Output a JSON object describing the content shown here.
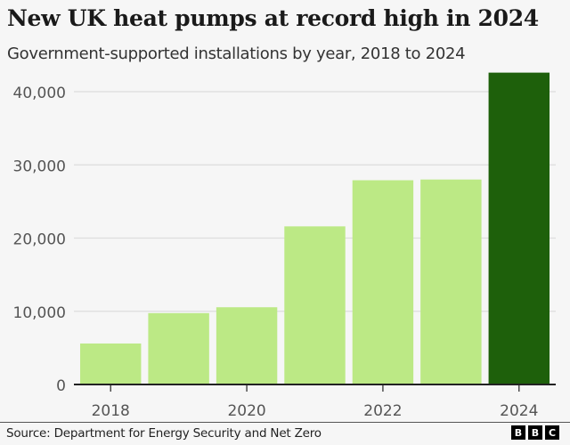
{
  "chart_data": {
    "type": "bar",
    "title": "New UK heat pumps at record high in 2024",
    "subtitle": "Government-supported installations by year, 2018 to 2024",
    "categories": [
      "2018",
      "2019",
      "2020",
      "2021",
      "2022",
      "2023",
      "2024"
    ],
    "values": [
      5600,
      9750,
      10550,
      21600,
      27900,
      28000,
      42600
    ],
    "highlight_index": 6,
    "colors": {
      "default": "#bce985",
      "highlight": "#1e600b",
      "grid": "#dddddd",
      "axis": "#222222"
    },
    "xlabel": "",
    "ylabel": "",
    "ylim": [
      0,
      40000
    ],
    "yticks": [
      0,
      10000,
      20000,
      30000,
      40000
    ],
    "ytick_labels": [
      "0",
      "10,000",
      "20,000",
      "30,000",
      "40,000"
    ],
    "xtick_labels": [
      "2018",
      "2020",
      "2022",
      "2024"
    ],
    "xtick_indices": [
      0,
      2,
      4,
      6
    ],
    "grid": true,
    "legend": "none"
  },
  "footer": {
    "source": "Source: Department for Energy Security and Net Zero",
    "logo": [
      "B",
      "B",
      "C"
    ]
  }
}
